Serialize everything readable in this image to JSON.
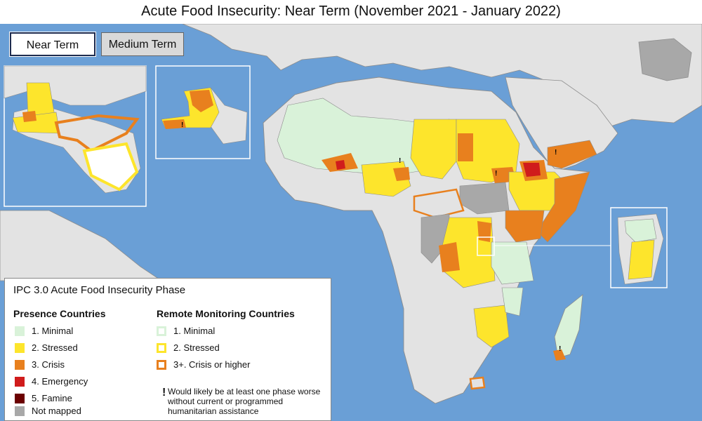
{
  "title": "Acute Food Insecurity: Near Term (November 2021 - January 2022)",
  "tabs": [
    {
      "label": "Near Term",
      "active": true
    },
    {
      "label": "Medium Term",
      "active": false
    }
  ],
  "colors": {
    "ocean": "#6a9fd6",
    "land": "#e3e3e3",
    "minimal": "#d9f2d9",
    "stressed": "#fde52c",
    "crisis": "#e8801e",
    "emergency": "#d01c1c",
    "famine": "#6b0000",
    "not_mapped": "#a8a8a8",
    "border": "#8c8c8c"
  },
  "legend": {
    "title": "IPC 3.0 Acute Food Insecurity Phase",
    "presence_heading": "Presence Countries",
    "remote_heading": "Remote Monitoring Countries",
    "presence_items": [
      {
        "label": "1. Minimal",
        "color": "#d9f2d9"
      },
      {
        "label": "2. Stressed",
        "color": "#fde52c"
      },
      {
        "label": "3. Crisis",
        "color": "#e8801e"
      },
      {
        "label": "4. Emergency",
        "color": "#d01c1c"
      },
      {
        "label": "5. Famine",
        "color": "#6b0000"
      },
      {
        "label": "Not mapped",
        "color": "#a8a8a8"
      }
    ],
    "remote_items": [
      {
        "label": "1. Minimal",
        "color": "#d9f2d9"
      },
      {
        "label": "2. Stressed",
        "color": "#fde52c"
      },
      {
        "label": "3+. Crisis or higher",
        "color": "#e8801e"
      }
    ],
    "assistance_note": "Would likely be at least one phase worse without current or programmed humanitarian assistance"
  }
}
